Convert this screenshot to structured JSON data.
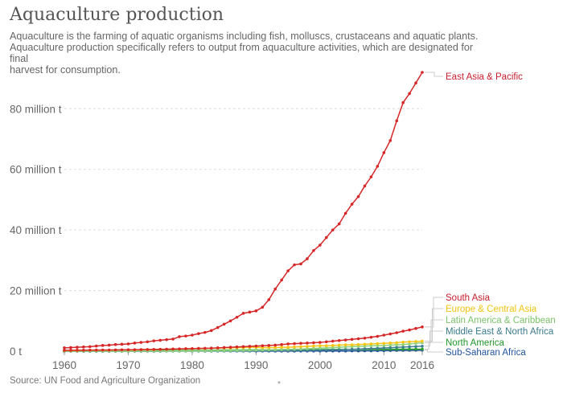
{
  "chart_data": {
    "type": "line",
    "title": "Aquaculture production",
    "subtitle": [
      "Aquaculture is the farming of aquatic organisms including fish, molluscs, crustaceans and aquatic plants.",
      "Aquaculture production specifically refers to output from aquaculture activities, which are designated for final",
      "harvest for consumption."
    ],
    "source": "Source: UN Food and Agriculture Organization",
    "footnote_mark": "*",
    "xlabel": "",
    "ylabel": "",
    "xlim": [
      1960,
      2016
    ],
    "ylim": [
      0,
      92
    ],
    "y_ticks": [
      {
        "value": 0,
        "label": "0 t"
      },
      {
        "value": 20,
        "label": "20 million t"
      },
      {
        "value": 40,
        "label": "40 million t"
      },
      {
        "value": 60,
        "label": "60 million t"
      },
      {
        "value": 80,
        "label": "80 million t"
      }
    ],
    "x_ticks": [
      {
        "value": 1960,
        "label": "1960"
      },
      {
        "value": 1970,
        "label": "1970"
      },
      {
        "value": 1980,
        "label": "1980"
      },
      {
        "value": 1990,
        "label": "1990"
      },
      {
        "value": 2000,
        "label": "2000"
      },
      {
        "value": 2010,
        "label": "2010"
      },
      {
        "value": 2016,
        "label": "2016"
      }
    ],
    "grid": true,
    "x": [
      1960,
      1961,
      1962,
      1963,
      1964,
      1965,
      1966,
      1967,
      1968,
      1969,
      1970,
      1971,
      1972,
      1973,
      1974,
      1975,
      1976,
      1977,
      1978,
      1979,
      1980,
      1981,
      1982,
      1983,
      1984,
      1985,
      1986,
      1987,
      1988,
      1989,
      1990,
      1991,
      1992,
      1993,
      1994,
      1995,
      1996,
      1997,
      1998,
      1999,
      2000,
      2001,
      2002,
      2003,
      2004,
      2005,
      2006,
      2007,
      2008,
      2009,
      2010,
      2011,
      2012,
      2013,
      2014,
      2015,
      2016
    ],
    "series": [
      {
        "name": "East Asia & Pacific",
        "color": "#d62728",
        "values": [
          1.1,
          1.2,
          1.3,
          1.4,
          1.5,
          1.7,
          1.9,
          2.0,
          2.2,
          2.3,
          2.4,
          2.7,
          2.9,
          3.1,
          3.4,
          3.6,
          3.8,
          4.0,
          4.8,
          5.0,
          5.3,
          5.8,
          6.2,
          6.8,
          7.8,
          8.9,
          10.0,
          11.2,
          12.5,
          12.9,
          13.3,
          14.5,
          17.0,
          20.5,
          23.5,
          26.5,
          28.5,
          28.8,
          30.5,
          33.2,
          35.0,
          37.5,
          40.0,
          42.0,
          45.5,
          48.5,
          51.0,
          54.5,
          57.5,
          61.0,
          65.5,
          69.5,
          76.0,
          82.0,
          85.0,
          88.5,
          92.0
        ]
      },
      {
        "name": "South Asia",
        "color": "#d62728",
        "values": [
          0.3,
          0.31,
          0.32,
          0.33,
          0.35,
          0.37,
          0.39,
          0.4,
          0.42,
          0.45,
          0.48,
          0.5,
          0.52,
          0.55,
          0.58,
          0.62,
          0.66,
          0.7,
          0.75,
          0.8,
          0.85,
          0.9,
          0.95,
          1.0,
          1.1,
          1.2,
          1.3,
          1.4,
          1.5,
          1.6,
          1.7,
          1.8,
          1.9,
          2.0,
          2.2,
          2.4,
          2.5,
          2.6,
          2.7,
          2.8,
          2.9,
          3.1,
          3.3,
          3.5,
          3.7,
          3.9,
          4.1,
          4.3,
          4.6,
          4.9,
          5.3,
          5.7,
          6.1,
          6.6,
          7.0,
          7.5,
          8.0
        ]
      },
      {
        "name": "Europe & Central Asia",
        "color": "#f5c518",
        "values": [
          0.2,
          0.2,
          0.2,
          0.3,
          0.3,
          0.3,
          0.3,
          0.3,
          0.4,
          0.4,
          0.4,
          0.4,
          0.5,
          0.5,
          0.5,
          0.6,
          0.6,
          0.7,
          0.7,
          0.8,
          0.8,
          0.9,
          0.9,
          1.0,
          1.0,
          1.1,
          1.1,
          1.2,
          1.2,
          1.3,
          1.3,
          1.2,
          1.2,
          1.2,
          1.3,
          1.3,
          1.4,
          1.5,
          1.6,
          1.7,
          1.8,
          1.8,
          1.9,
          2.0,
          2.1,
          2.1,
          2.2,
          2.3,
          2.4,
          2.5,
          2.6,
          2.7,
          2.8,
          3.0,
          3.1,
          3.2,
          3.3
        ]
      },
      {
        "name": "Latin America & Caribbean",
        "color": "#8fd17e",
        "values": [
          0.02,
          0.02,
          0.02,
          0.02,
          0.03,
          0.03,
          0.03,
          0.03,
          0.04,
          0.04,
          0.04,
          0.05,
          0.05,
          0.05,
          0.06,
          0.06,
          0.07,
          0.07,
          0.08,
          0.08,
          0.1,
          0.11,
          0.12,
          0.13,
          0.15,
          0.17,
          0.2,
          0.23,
          0.26,
          0.3,
          0.35,
          0.4,
          0.45,
          0.5,
          0.55,
          0.6,
          0.65,
          0.7,
          0.8,
          0.9,
          1.0,
          1.1,
          1.2,
          1.3,
          1.4,
          1.5,
          1.6,
          1.7,
          1.8,
          1.85,
          1.9,
          2.0,
          2.1,
          2.2,
          2.4,
          2.6,
          2.8
        ]
      },
      {
        "name": "Middle East & North Africa",
        "color": "#3f7f8f",
        "values": [
          0.01,
          0.01,
          0.01,
          0.01,
          0.01,
          0.01,
          0.01,
          0.01,
          0.02,
          0.02,
          0.02,
          0.02,
          0.02,
          0.03,
          0.03,
          0.03,
          0.03,
          0.04,
          0.04,
          0.04,
          0.05,
          0.05,
          0.06,
          0.06,
          0.07,
          0.08,
          0.09,
          0.1,
          0.11,
          0.12,
          0.13,
          0.14,
          0.15,
          0.16,
          0.18,
          0.2,
          0.22,
          0.25,
          0.28,
          0.32,
          0.36,
          0.4,
          0.45,
          0.5,
          0.55,
          0.62,
          0.7,
          0.78,
          0.86,
          0.95,
          1.05,
          1.15,
          1.25,
          1.35,
          1.45,
          1.55,
          1.65
        ]
      },
      {
        "name": "North America",
        "color": "#2ca02c",
        "values": [
          0.1,
          0.1,
          0.11,
          0.11,
          0.12,
          0.12,
          0.13,
          0.13,
          0.14,
          0.14,
          0.15,
          0.16,
          0.17,
          0.18,
          0.19,
          0.2,
          0.21,
          0.22,
          0.23,
          0.24,
          0.25,
          0.27,
          0.28,
          0.3,
          0.32,
          0.34,
          0.36,
          0.38,
          0.4,
          0.42,
          0.45,
          0.46,
          0.47,
          0.48,
          0.49,
          0.5,
          0.5,
          0.51,
          0.52,
          0.53,
          0.54,
          0.55,
          0.56,
          0.57,
          0.58,
          0.59,
          0.6,
          0.6,
          0.61,
          0.62,
          0.62,
          0.63,
          0.64,
          0.65,
          0.66,
          0.67,
          0.68
        ]
      },
      {
        "name": "Sub-Saharan Africa",
        "color": "#1f4e9a",
        "values": [
          0.01,
          0.01,
          0.01,
          0.01,
          0.01,
          0.01,
          0.01,
          0.01,
          0.01,
          0.01,
          0.01,
          0.01,
          0.01,
          0.01,
          0.01,
          0.01,
          0.02,
          0.02,
          0.02,
          0.02,
          0.02,
          0.02,
          0.02,
          0.02,
          0.02,
          0.03,
          0.03,
          0.03,
          0.03,
          0.03,
          0.03,
          0.03,
          0.03,
          0.04,
          0.04,
          0.04,
          0.04,
          0.05,
          0.05,
          0.05,
          0.06,
          0.06,
          0.07,
          0.07,
          0.08,
          0.09,
          0.1,
          0.12,
          0.14,
          0.16,
          0.19,
          0.22,
          0.25,
          0.28,
          0.3,
          0.33,
          0.35
        ]
      }
    ]
  }
}
